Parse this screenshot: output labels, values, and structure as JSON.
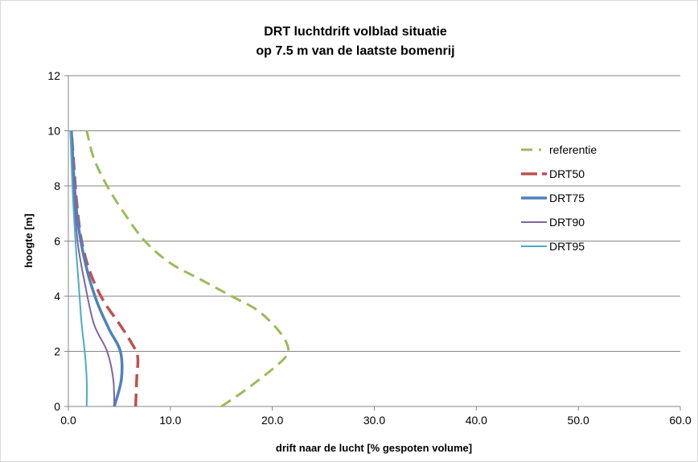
{
  "chart_data": {
    "type": "line",
    "title": [
      "DRT luchtdrift volblad situatie",
      "op 7.5 m van de laatste bomenrij"
    ],
    "xlabel": "drift naar de lucht [% gespoten volume]",
    "ylabel": "hoogte [m]",
    "xlim": [
      0,
      60
    ],
    "ylim": [
      0,
      12
    ],
    "xticks": [
      "0.0",
      "10.0",
      "20.0",
      "30.0",
      "40.0",
      "50.0",
      "60.0"
    ],
    "yticks": [
      "0",
      "2",
      "4",
      "6",
      "8",
      "10",
      "12"
    ],
    "grid": "horizontal",
    "legend_position": "right",
    "series": [
      {
        "name": "referentie",
        "color": "#9bbb59",
        "dash": "long-dash-dot",
        "points": [
          [
            15.0,
            0
          ],
          [
            17.0,
            0.5
          ],
          [
            19.5,
            1.2
          ],
          [
            21.3,
            1.8
          ],
          [
            21.5,
            2.2
          ],
          [
            20.5,
            2.8
          ],
          [
            18.5,
            3.5
          ],
          [
            16.0,
            4.0
          ],
          [
            13.0,
            4.6
          ],
          [
            10.0,
            5.2
          ],
          [
            7.5,
            6.0
          ],
          [
            5.5,
            7.0
          ],
          [
            3.8,
            8.0
          ],
          [
            2.5,
            9.0
          ],
          [
            1.8,
            10.0
          ]
        ]
      },
      {
        "name": "DRT50",
        "color": "#c0504d",
        "dash": "dash",
        "points": [
          [
            6.6,
            0
          ],
          [
            6.7,
            1.0
          ],
          [
            6.8,
            1.8
          ],
          [
            6.2,
            2.3
          ],
          [
            5.0,
            3.0
          ],
          [
            3.5,
            3.8
          ],
          [
            2.2,
            4.8
          ],
          [
            1.3,
            6.0
          ],
          [
            0.8,
            7.5
          ],
          [
            0.5,
            9.0
          ],
          [
            0.3,
            10.0
          ]
        ]
      },
      {
        "name": "DRT75",
        "color": "#4f81bd",
        "dash": "solid",
        "points": [
          [
            4.5,
            0
          ],
          [
            5.2,
            1.0
          ],
          [
            5.1,
            2.0
          ],
          [
            4.0,
            2.8
          ],
          [
            2.8,
            3.8
          ],
          [
            1.8,
            5.0
          ],
          [
            1.0,
            6.5
          ],
          [
            0.6,
            8.0
          ],
          [
            0.3,
            10.0
          ]
        ]
      },
      {
        "name": "DRT90",
        "color": "#8064a2",
        "dash": "solid",
        "points": [
          [
            4.5,
            0
          ],
          [
            4.4,
            1.0
          ],
          [
            3.8,
            2.0
          ],
          [
            2.5,
            3.0
          ],
          [
            1.6,
            4.5
          ],
          [
            0.9,
            6.0
          ],
          [
            0.5,
            8.0
          ],
          [
            0.2,
            10.0
          ]
        ]
      },
      {
        "name": "DRT95",
        "color": "#4bacc6",
        "dash": "solid",
        "points": [
          [
            1.8,
            0
          ],
          [
            1.8,
            1.0
          ],
          [
            1.6,
            2.0
          ],
          [
            1.3,
            3.0
          ],
          [
            1.0,
            4.5
          ],
          [
            0.7,
            6.0
          ],
          [
            0.4,
            8.0
          ],
          [
            0.2,
            10.0
          ]
        ]
      }
    ]
  }
}
